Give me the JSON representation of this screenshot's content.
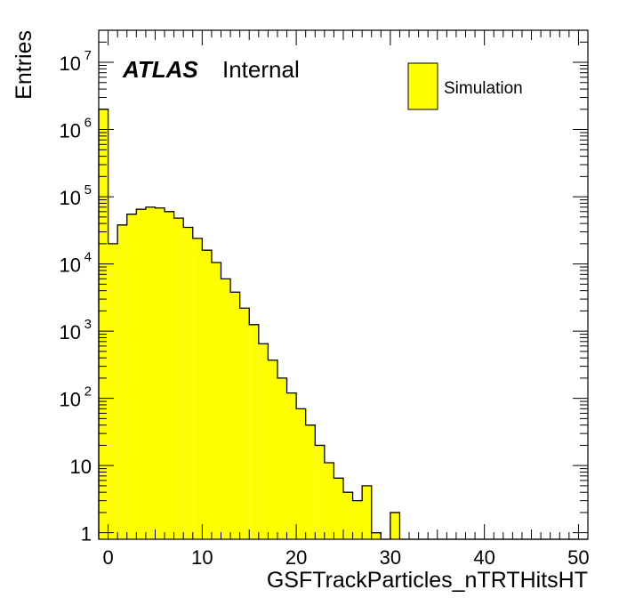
{
  "chart_data": {
    "type": "bar",
    "histogram": true,
    "title": "",
    "xlabel": "GSFTrackParticles_nTRTHitsHT",
    "ylabel": "Entries",
    "xlim": [
      -1,
      51
    ],
    "ylim": [
      0.8,
      30000000
    ],
    "yscale": "log",
    "grid": false,
    "legend_position": "top-right",
    "fill_color": "#ffff00",
    "line_color": "#000000",
    "atlas_label": "ATLAS",
    "atlas_status": "Internal",
    "x_ticks": [
      "0",
      "10",
      "20",
      "30",
      "40",
      "50"
    ],
    "y_ticks": [
      {
        "base": "1",
        "exp": ""
      },
      {
        "base": "10",
        "exp": ""
      },
      {
        "base": "10",
        "exp": "2"
      },
      {
        "base": "10",
        "exp": "3"
      },
      {
        "base": "10",
        "exp": "4"
      },
      {
        "base": "10",
        "exp": "5"
      },
      {
        "base": "10",
        "exp": "6"
      },
      {
        "base": "10",
        "exp": "7"
      }
    ],
    "series": [
      {
        "name": "Simulation",
        "bin_edges": [
          -1,
          0,
          1,
          2,
          3,
          4,
          5,
          6,
          7,
          8,
          9,
          10,
          11,
          12,
          13,
          14,
          15,
          16,
          17,
          18,
          19,
          20,
          21,
          22,
          23,
          24,
          25,
          26,
          27,
          28,
          29,
          30,
          31,
          32,
          33,
          34,
          35,
          36,
          37,
          38,
          39,
          40,
          41,
          42,
          43,
          44,
          45,
          46,
          47,
          48,
          49,
          50,
          51
        ],
        "values": [
          2000000,
          20000,
          38000,
          55000,
          65000,
          70000,
          68000,
          60000,
          48000,
          35000,
          24000,
          16000,
          10500,
          6000,
          3800,
          2200,
          1250,
          650,
          370,
          200,
          120,
          70,
          40,
          20,
          11,
          6.5,
          4,
          3,
          5,
          1,
          0,
          2,
          0,
          0,
          0,
          0,
          0,
          0,
          0,
          0,
          0,
          0,
          0,
          0,
          0,
          0,
          0,
          0,
          0,
          0,
          0,
          0
        ]
      }
    ]
  }
}
